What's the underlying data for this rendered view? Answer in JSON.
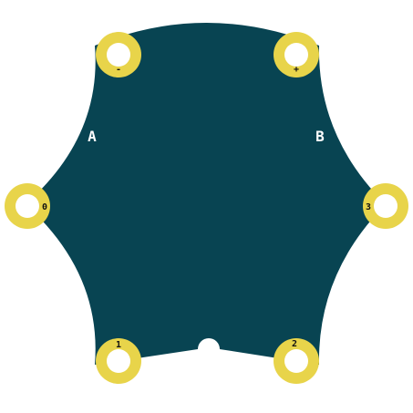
{
  "board": {
    "colors": {
      "pcb": "#084452",
      "pad_ring": "#e8d44a",
      "pad_hole": "#ffffff",
      "label_dark": "#111111",
      "label_light": "#ffffff"
    },
    "side_labels": {
      "left": "A",
      "right": "B"
    },
    "pads": [
      {
        "id": "minus",
        "label": "-"
      },
      {
        "id": "plus",
        "label": "+"
      },
      {
        "id": "0",
        "label": "0"
      },
      {
        "id": "3",
        "label": "3"
      },
      {
        "id": "1",
        "label": "1"
      },
      {
        "id": "2",
        "label": "2"
      }
    ]
  }
}
